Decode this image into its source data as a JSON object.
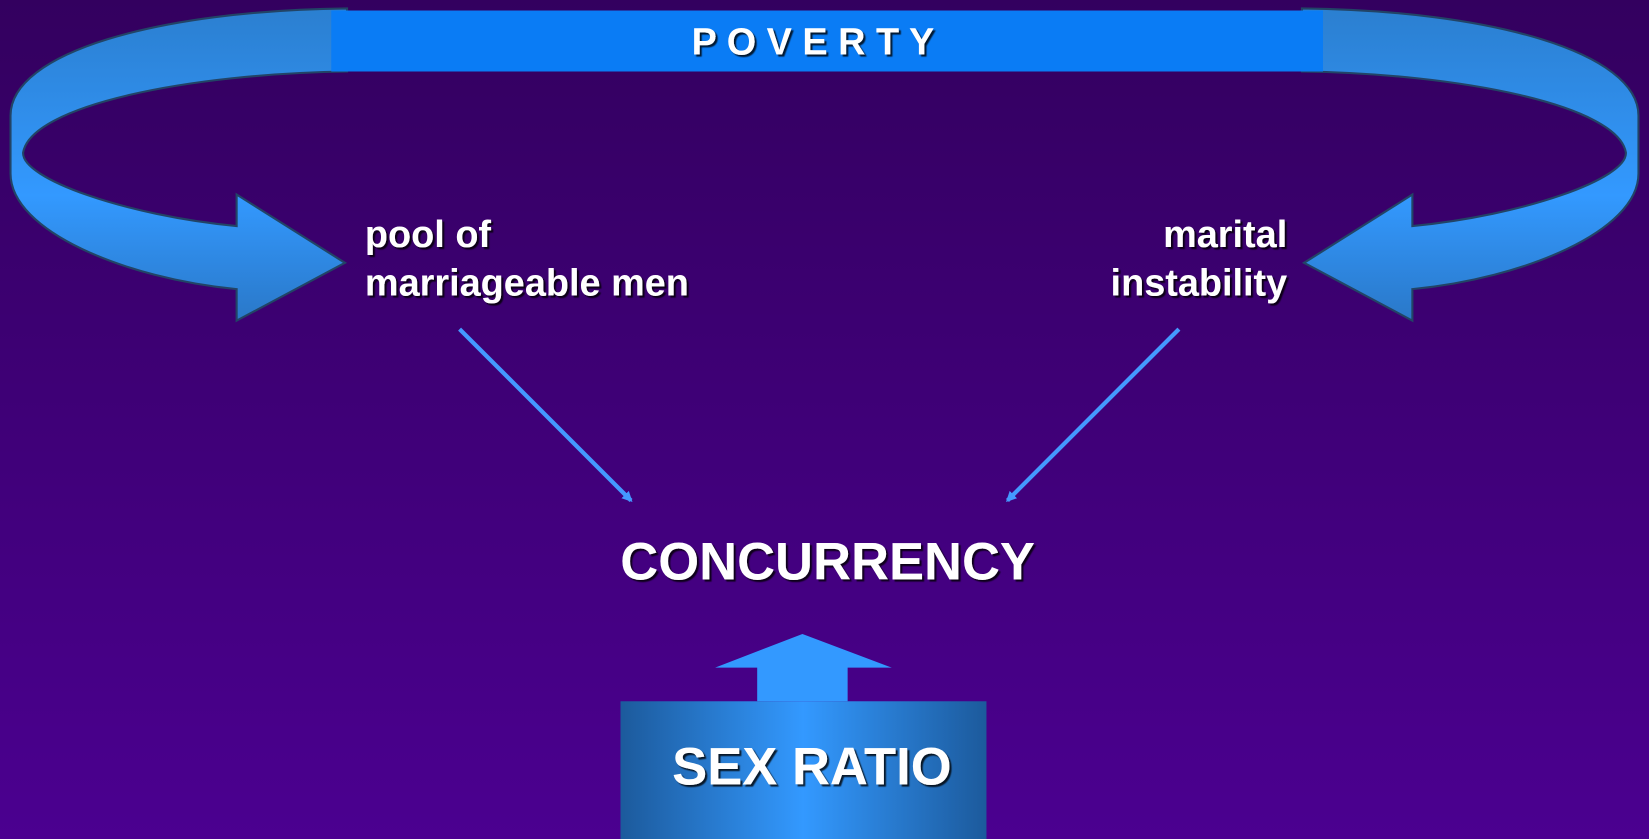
{
  "poverty": {
    "label": "P O V E R T Y"
  },
  "nodes": [
    {
      "lines": [
        "pool of",
        "marriageable men"
      ]
    },
    {
      "lines": [
        "marital",
        "instability"
      ]
    },
    {
      "label": "CONCURRENCY"
    },
    {
      "label": "SEX RATIO"
    }
  ]
}
